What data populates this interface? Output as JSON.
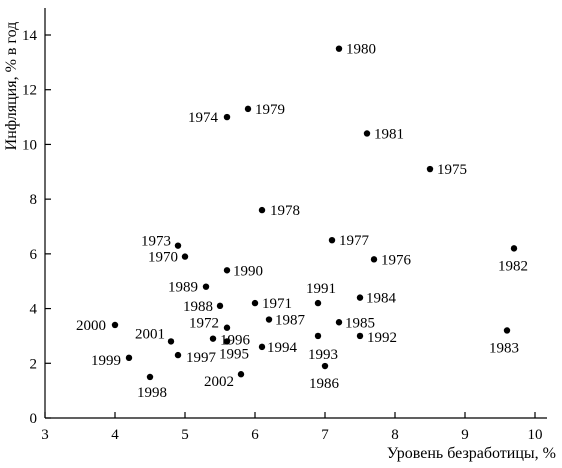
{
  "chart_data": {
    "type": "scatter",
    "xlabel": "Уровень безработицы, %",
    "ylabel": "Инфляция, % в год",
    "xlim": [
      3,
      10
    ],
    "ylim": [
      0,
      15
    ],
    "x_ticks": [
      3,
      4,
      5,
      6,
      7,
      8,
      9,
      10
    ],
    "y_ticks": [
      0,
      2,
      4,
      6,
      8,
      10,
      12,
      14
    ],
    "grid": false,
    "points": [
      {
        "label": "1970",
        "x": 5.0,
        "y": 5.9
      },
      {
        "label": "1971",
        "x": 6.0,
        "y": 4.2
      },
      {
        "label": "1972",
        "x": 5.6,
        "y": 3.3
      },
      {
        "label": "1973",
        "x": 4.9,
        "y": 6.3
      },
      {
        "label": "1974",
        "x": 5.6,
        "y": 11.0
      },
      {
        "label": "1975",
        "x": 8.5,
        "y": 9.1
      },
      {
        "label": "1976",
        "x": 7.7,
        "y": 5.8
      },
      {
        "label": "1977",
        "x": 7.1,
        "y": 6.5
      },
      {
        "label": "1978",
        "x": 6.1,
        "y": 7.6
      },
      {
        "label": "1979",
        "x": 5.9,
        "y": 11.3
      },
      {
        "label": "1980",
        "x": 7.2,
        "y": 13.5
      },
      {
        "label": "1981",
        "x": 7.6,
        "y": 10.4
      },
      {
        "label": "1982",
        "x": 9.7,
        "y": 6.2
      },
      {
        "label": "1983",
        "x": 9.6,
        "y": 3.2
      },
      {
        "label": "1984",
        "x": 7.5,
        "y": 4.4
      },
      {
        "label": "1985",
        "x": 7.2,
        "y": 3.5
      },
      {
        "label": "1986",
        "x": 7.0,
        "y": 1.9
      },
      {
        "label": "1987",
        "x": 6.2,
        "y": 3.6
      },
      {
        "label": "1988",
        "x": 5.5,
        "y": 4.1
      },
      {
        "label": "1989",
        "x": 5.3,
        "y": 4.8
      },
      {
        "label": "1990",
        "x": 5.6,
        "y": 5.4
      },
      {
        "label": "1991",
        "x": 6.9,
        "y": 4.2
      },
      {
        "label": "1992",
        "x": 7.5,
        "y": 3.0
      },
      {
        "label": "1993",
        "x": 6.9,
        "y": 3.0
      },
      {
        "label": "1994",
        "x": 6.1,
        "y": 2.6
      },
      {
        "label": "1995",
        "x": 5.6,
        "y": 2.8
      },
      {
        "label": "1996",
        "x": 5.4,
        "y": 2.9
      },
      {
        "label": "1997",
        "x": 4.9,
        "y": 2.3
      },
      {
        "label": "1998",
        "x": 4.5,
        "y": 1.5
      },
      {
        "label": "1999",
        "x": 4.2,
        "y": 2.2
      },
      {
        "label": "2000",
        "x": 4.0,
        "y": 3.4
      },
      {
        "label": "2001",
        "x": 4.8,
        "y": 2.8
      },
      {
        "label": "2002",
        "x": 5.8,
        "y": 1.6
      }
    ]
  }
}
